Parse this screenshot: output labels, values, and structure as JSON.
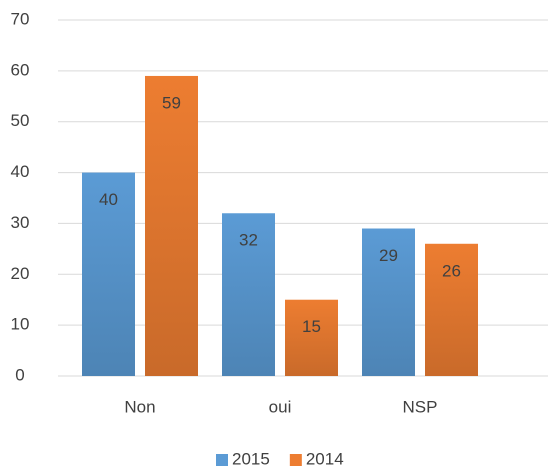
{
  "chart_data": {
    "type": "bar",
    "categories": [
      "Non",
      "oui",
      "NSP"
    ],
    "series": [
      {
        "name": "2015",
        "color": "#5b9bd5",
        "values": [
          40,
          32,
          29
        ]
      },
      {
        "name": "2014",
        "color": "#ed7d31",
        "values": [
          59,
          15,
          26
        ]
      }
    ],
    "ylim": [
      0,
      70
    ],
    "yticks": [
      0,
      10,
      20,
      30,
      40,
      50,
      60,
      70
    ],
    "grid": true,
    "legend": "bottom"
  }
}
